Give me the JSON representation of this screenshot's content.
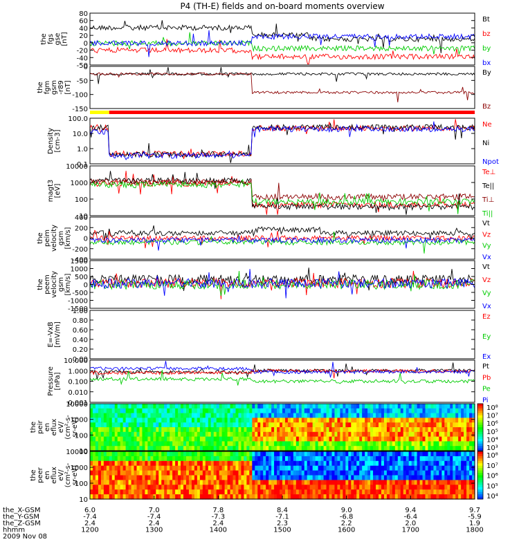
{
  "chart_data": {
    "type": "line",
    "title": "P4 (TH-E) fields and on-board moments overview",
    "panels": [
      {
        "id": "fgs",
        "ylabel": [
          "the",
          "fgs",
          "gse",
          "[nT]"
        ],
        "yticks": [
          "80",
          "60",
          "40",
          "20",
          "0",
          "-20",
          "-40",
          "-50"
        ],
        "legend": [
          {
            "label": "Bt",
            "color": "#000000"
          },
          {
            "label": "bz",
            "color": "#ff0000"
          },
          {
            "label": "by",
            "color": "#00cc00"
          },
          {
            "label": "bx",
            "color": "#0000ff"
          }
        ]
      },
      {
        "id": "fgm",
        "ylabel": [
          "the",
          "fgm",
          "gsm",
          "-r89",
          "[nT]"
        ],
        "yticks": [
          "0",
          "-50",
          "-100",
          "-150"
        ],
        "legend": [
          {
            "label": "By",
            "color": "#000000"
          },
          {
            "label": "Bz",
            "color": "#8b0000"
          }
        ]
      },
      {
        "id": "density",
        "ylabel": [
          "Density",
          "[cm-3]"
        ],
        "yticks": [
          "100.0",
          "10.0",
          "1.0",
          "0.1"
        ],
        "legend": [
          {
            "label": "Ne",
            "color": "#ff0000"
          },
          {
            "label": "Ni",
            "color": "#000000"
          },
          {
            "label": "Npot",
            "color": "#0000ff"
          }
        ]
      },
      {
        "id": "temp",
        "ylabel": [
          "magt3",
          "[eV]"
        ],
        "yticks": [
          "10000",
          "1000",
          "100",
          "10"
        ],
        "legend": [
          {
            "label": "Te⊥",
            "color": "#ff0000"
          },
          {
            "label": "Te||",
            "color": "#000000"
          },
          {
            "label": "Ti⊥",
            "color": "#8b0000"
          },
          {
            "label": "Ti||",
            "color": "#00cc00"
          }
        ]
      },
      {
        "id": "peim",
        "ylabel": [
          "the",
          "peim",
          "velocity",
          "gsm",
          "[km/s]"
        ],
        "yticks": [
          "400",
          "200",
          "0",
          "-200",
          "-400"
        ],
        "legend": [
          {
            "label": "Vt",
            "color": "#000000"
          },
          {
            "label": "Vz",
            "color": "#ff0000"
          },
          {
            "label": "Vy",
            "color": "#00cc00"
          },
          {
            "label": "Vx",
            "color": "#0000ff"
          }
        ]
      },
      {
        "id": "peem",
        "ylabel": [
          "the",
          "peem",
          "velocity",
          "gsm",
          "[km/s]"
        ],
        "yticks": [
          "1500",
          "1000",
          "500",
          "0",
          "-500",
          "-1000",
          "-1500"
        ],
        "legend": [
          {
            "label": "Vt",
            "color": "#000000"
          },
          {
            "label": "Vz",
            "color": "#ff0000"
          },
          {
            "label": "Vy",
            "color": "#00cc00"
          },
          {
            "label": "Vx",
            "color": "#0000ff"
          }
        ]
      },
      {
        "id": "efield",
        "ylabel": [
          "E=-VxB",
          "[mV/m]"
        ],
        "yticks": [
          "1.00",
          "0.80",
          "0.60",
          "0.40",
          "0.20",
          "0.00"
        ],
        "legend": [
          {
            "label": "Ez",
            "color": "#ff0000"
          },
          {
            "label": "Ey",
            "color": "#00cc00"
          },
          {
            "label": "Ex",
            "color": "#0000ff"
          }
        ]
      },
      {
        "id": "pressure",
        "ylabel": [
          "Pressure",
          "[nPa]"
        ],
        "yticks": [
          "10.000",
          "1.000",
          "0.100",
          "0.010",
          "0.001"
        ],
        "legend": [
          {
            "label": "Pt",
            "color": "#000000"
          },
          {
            "label": "Pb",
            "color": "#ff0000"
          },
          {
            "label": "Pe",
            "color": "#00cc00"
          },
          {
            "label": "Pi",
            "color": "#0000ff"
          }
        ]
      },
      {
        "id": "peir",
        "ylabel": [
          "the",
          "peir",
          "en",
          "eflux",
          "eV/",
          "(cm²-s-",
          "sr-eV)"
        ],
        "yticks": [
          "10000",
          "1000",
          "100",
          "10"
        ],
        "colorbar": [
          "10⁸",
          "10⁷",
          "10⁶",
          "10⁵",
          "10⁴",
          "10³"
        ]
      },
      {
        "id": "peer",
        "ylabel": [
          "the",
          "peer",
          "en",
          "eflux",
          "eV/",
          "(cm²-s-",
          "sr-eV)"
        ],
        "yticks": [
          "10000",
          "1000",
          "100",
          "10"
        ],
        "colorbar": [
          "10⁸",
          "10⁷",
          "10⁶",
          "10⁵",
          "10⁴"
        ]
      }
    ],
    "x_axis": {
      "rows": [
        {
          "label": "the_X-GSM",
          "values": [
            "6.0",
            "7.0",
            "7.8",
            "8.4",
            "9.0",
            "9.4",
            "9.7"
          ]
        },
        {
          "label": "the_Y-GSM",
          "values": [
            "-7.4",
            "-7.4",
            "-7.3",
            "-7.1",
            "-6.8",
            "-6.4",
            "-5.9"
          ]
        },
        {
          "label": "the_Z-GSM",
          "values": [
            "2.4",
            "2.4",
            "2.4",
            "2.3",
            "2.2",
            "2.0",
            "1.9"
          ]
        },
        {
          "label": "hhmm",
          "values": [
            "1200",
            "1300",
            "1400",
            "1500",
            "1600",
            "1700",
            "1800"
          ]
        }
      ],
      "date": "2009 Nov 08"
    },
    "regions": [
      {
        "start": 0.0,
        "end": 0.05,
        "color": "#ffff00"
      },
      {
        "start": 0.05,
        "end": 1.0,
        "color": "#ff0000"
      }
    ]
  }
}
